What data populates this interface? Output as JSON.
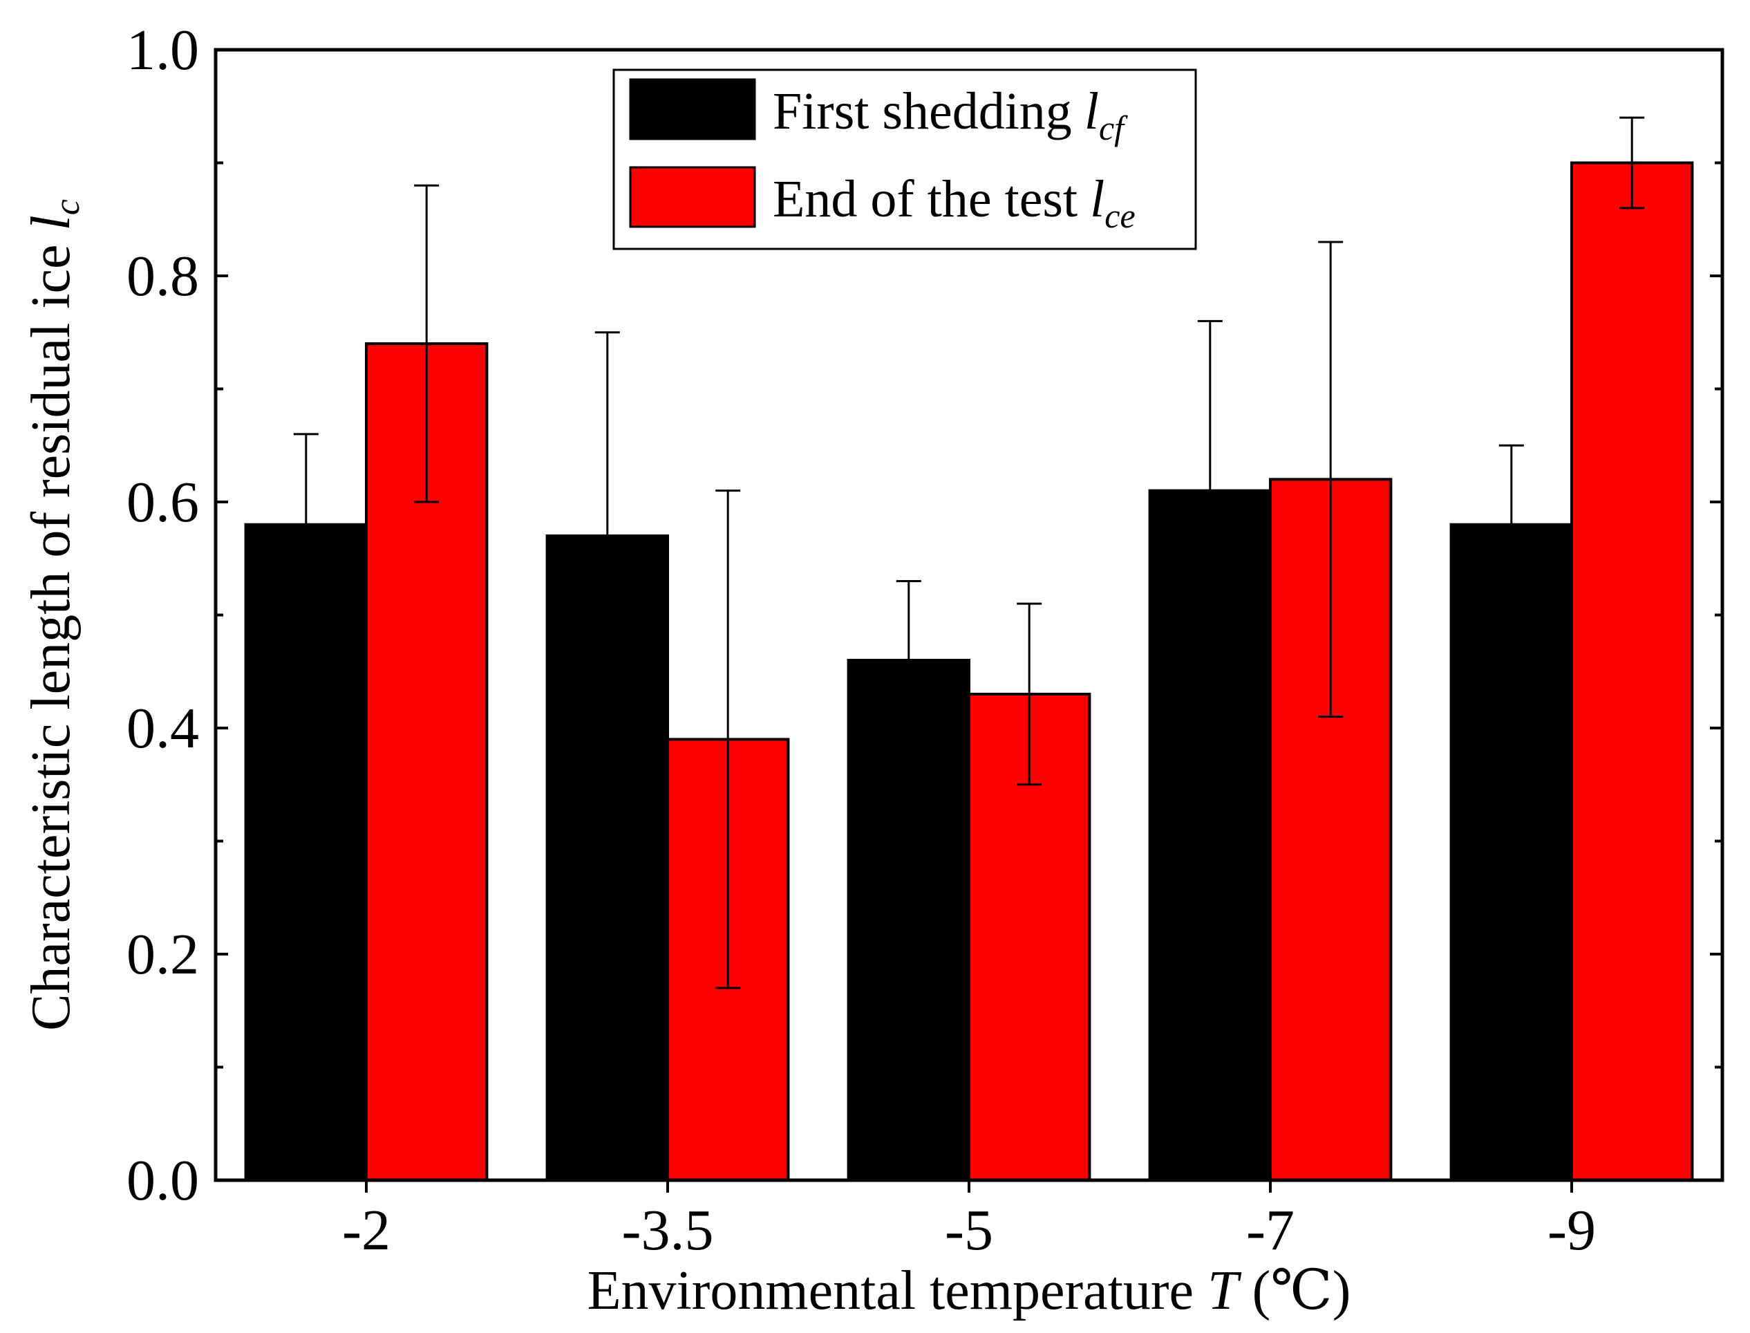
{
  "chart_data": {
    "type": "bar",
    "title": "",
    "categories": [
      "-2",
      "-3.5",
      "-5",
      "-7",
      "-9"
    ],
    "series": [
      {
        "name": "First shedding",
        "symbol": "l",
        "subscript": "cf",
        "color": "#000000",
        "values": [
          0.58,
          0.57,
          0.46,
          0.61,
          0.58
        ],
        "error_upper": [
          0.08,
          0.18,
          0.07,
          0.15,
          0.07
        ]
      },
      {
        "name": "End of the test",
        "symbol": "l",
        "subscript": "ce",
        "color": "#ff0000",
        "values": [
          0.74,
          0.39,
          0.43,
          0.62,
          0.9
        ],
        "error_upper": [
          0.14,
          0.22,
          0.08,
          0.21,
          0.04
        ],
        "error_lower": [
          0.14,
          0.22,
          0.08,
          0.21,
          0.04
        ]
      }
    ],
    "xlabel": {
      "prefix": "Environmental temperature ",
      "symbol": "T",
      "unit": " (℃)"
    },
    "ylabel": {
      "prefix": "Characteristic length of residual ice ",
      "symbol": "l",
      "subscript": "c"
    },
    "ylim": [
      0.0,
      1.0
    ],
    "yticks": [
      "0.0",
      "0.2",
      "0.4",
      "0.6",
      "0.8",
      "1.0"
    ],
    "legend_position": "top-center",
    "grid": false
  }
}
